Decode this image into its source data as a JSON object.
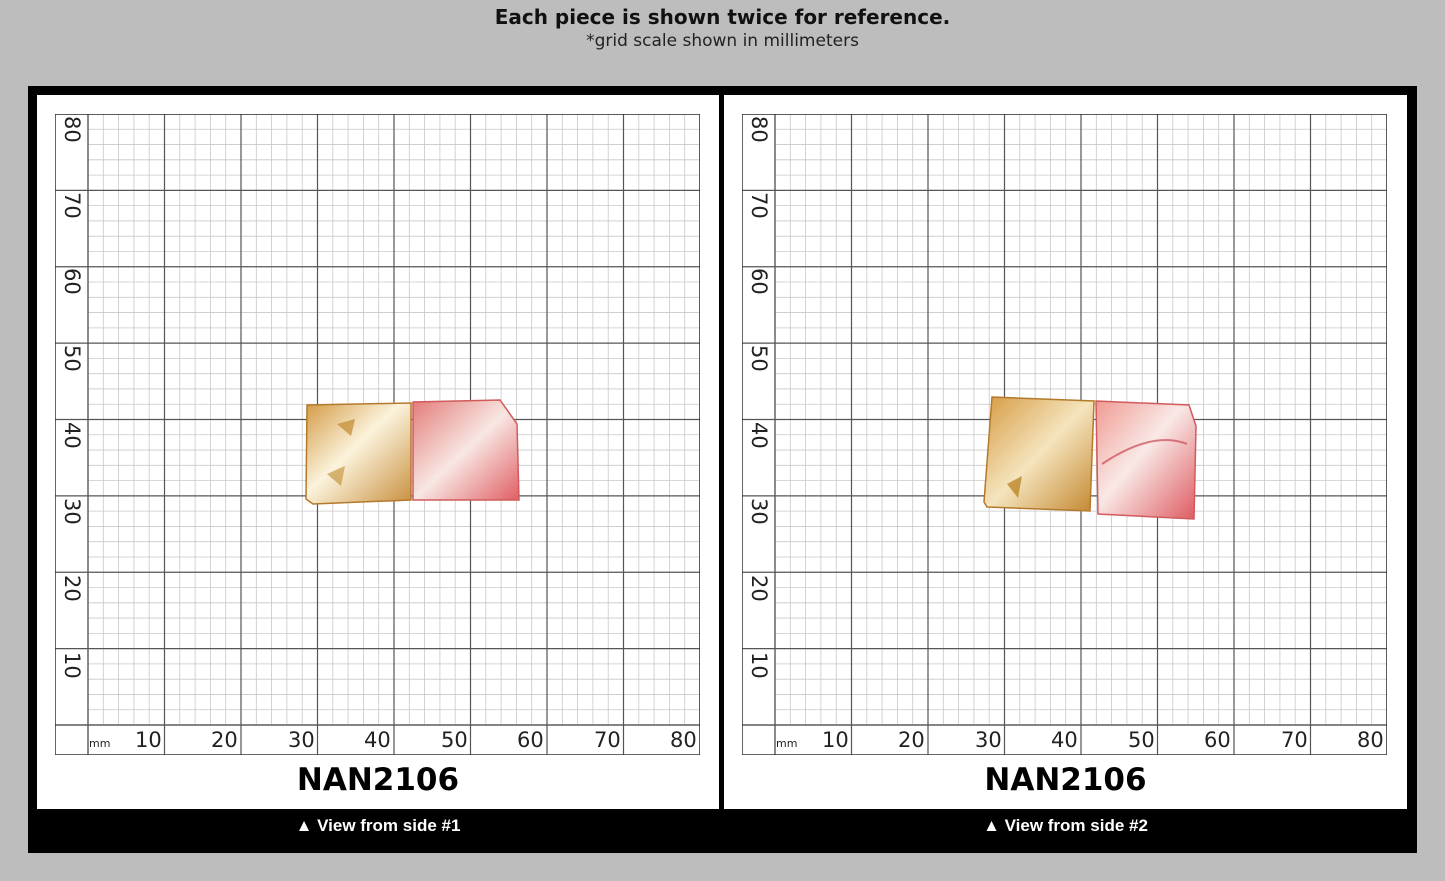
{
  "header": {
    "title": "Each piece is shown twice for reference.",
    "subtitle": "*grid scale shown in millimeters"
  },
  "grid": {
    "unit": "mm",
    "x_ticks": [
      "10",
      "20",
      "30",
      "40",
      "50",
      "60",
      "70",
      "80"
    ],
    "y_ticks": [
      "10",
      "20",
      "30",
      "40",
      "50",
      "60",
      "70",
      "80"
    ]
  },
  "colors": {
    "background": "#bdbdbd",
    "frame": "#000000",
    "grid_major": "#555555",
    "grid_minor": "#c8c8c8",
    "stone_gold": "#d9a24a",
    "stone_pink": "#e8807f"
  },
  "views": [
    {
      "sku": "NAN2106",
      "caption": "▲ View from side #1"
    },
    {
      "sku": "NAN2106",
      "caption": "▲ View from side #2"
    }
  ]
}
